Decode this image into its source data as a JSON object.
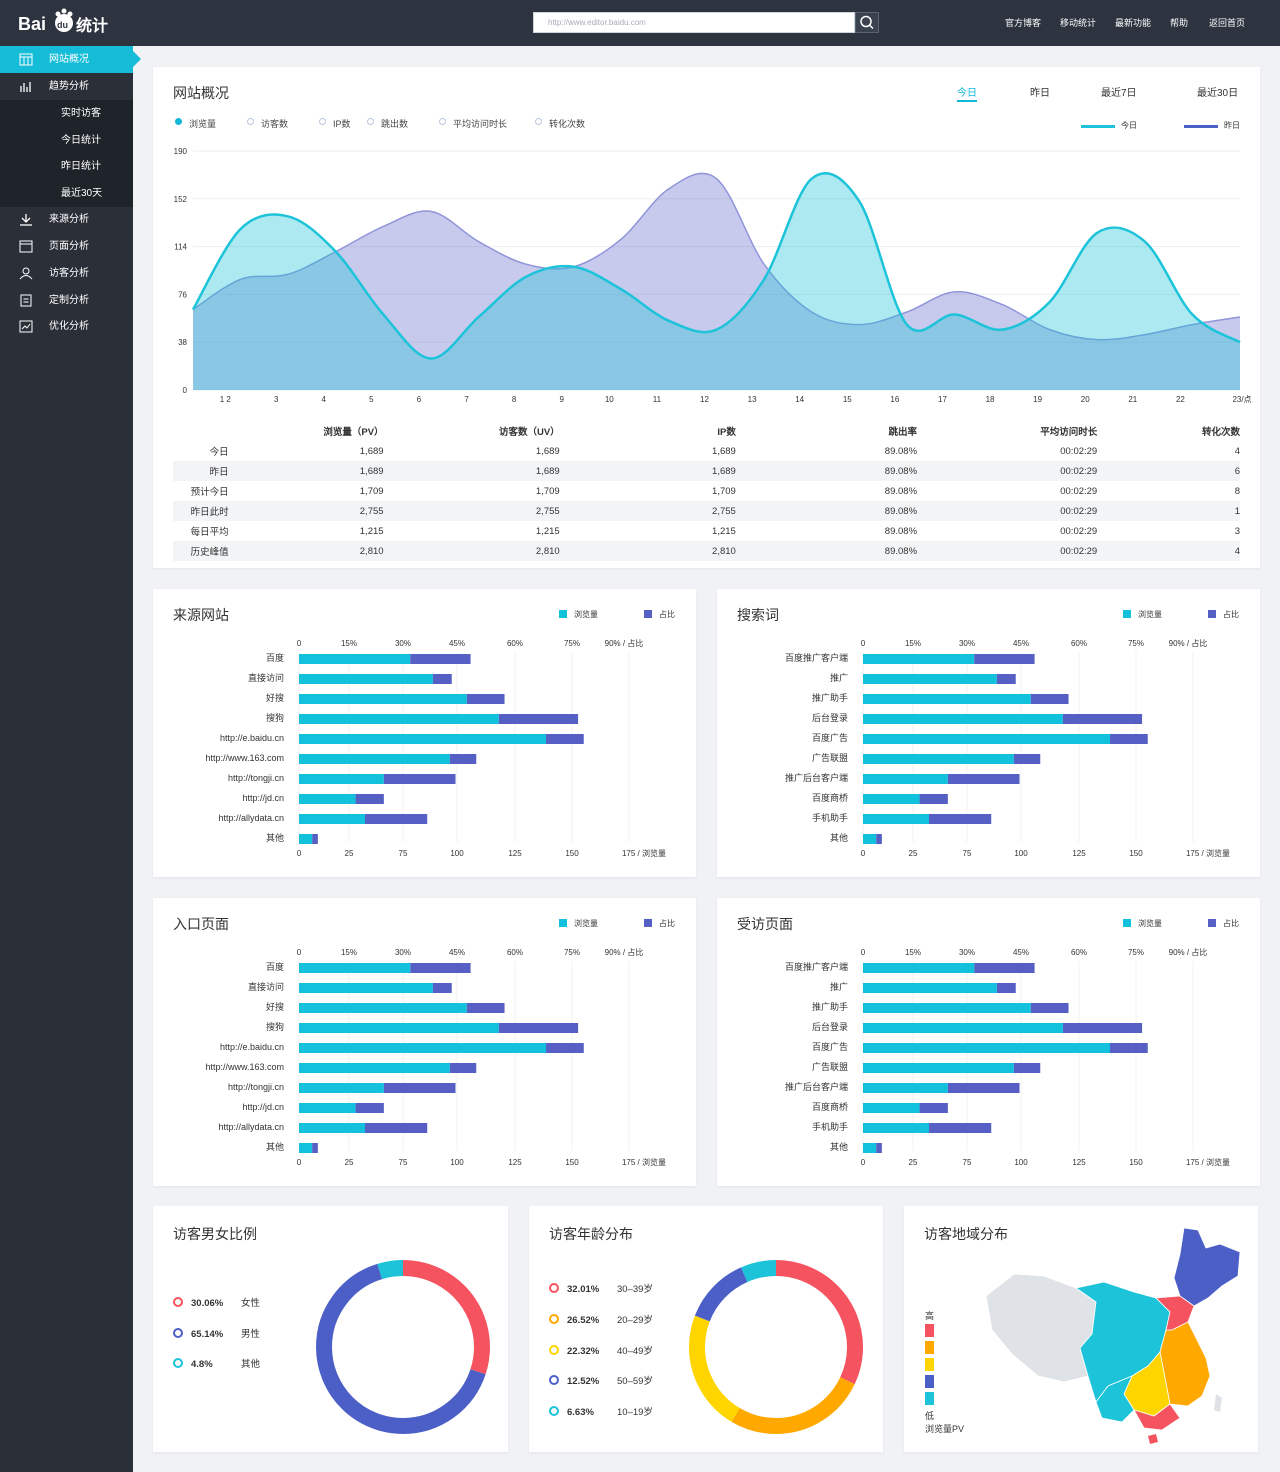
{
  "header": {
    "logo_text": "Bai du 统计",
    "search_placeholder": "http://www.editor.baidu.com",
    "nav": [
      "官方博客",
      "移动统计",
      "最新功能",
      "帮助",
      "返回首页"
    ]
  },
  "sidebar": {
    "items": [
      {
        "label": "网站概况",
        "icon": "grid-icon"
      },
      {
        "label": "趋势分析",
        "icon": "bar-chart-icon"
      },
      {
        "label": "来源分析",
        "icon": "download-icon"
      },
      {
        "label": "页面分析",
        "icon": "window-icon"
      },
      {
        "label": "访客分析",
        "icon": "users-icon"
      },
      {
        "label": "定制分析",
        "icon": "clipboard-icon"
      },
      {
        "label": "优化分析",
        "icon": "line-chart-icon"
      }
    ],
    "subitems": [
      "实时访客",
      "今日统计",
      "昨日统计",
      "最近30天"
    ]
  },
  "overview": {
    "title": "网站概况",
    "tabs": [
      "今日",
      "昨日",
      "最近7日",
      "最近30日"
    ],
    "metrics": [
      "浏览量",
      "访客数",
      "IP数",
      "跳出数",
      "平均访问时长",
      "转化次数"
    ],
    "legend": {
      "today": "今日",
      "yesterday": "昨日"
    },
    "colors": {
      "today": "#1cc3d9",
      "yesterday": "#4c5fc7"
    }
  },
  "chart_data": [
    {
      "type": "area",
      "x": [
        "1",
        "2",
        "3",
        "4",
        "5",
        "6",
        "7",
        "8",
        "9",
        "10",
        "11",
        "12",
        "13",
        "14",
        "15",
        "16",
        "17",
        "18",
        "19",
        "20",
        "21",
        "22",
        "23/点"
      ],
      "yticks": [
        0,
        38,
        76,
        114,
        152,
        190
      ],
      "ylim": [
        0,
        190
      ],
      "series": [
        {
          "name": "今日",
          "values": [
            64,
            128,
            138,
            110,
            60,
            25,
            58,
            90,
            98,
            80,
            55,
            48,
            88,
            168,
            150,
            52,
            60,
            48,
            70,
            125,
            118,
            60,
            38
          ]
        },
        {
          "name": "昨日",
          "values": [
            64,
            88,
            92,
            110,
            130,
            142,
            118,
            100,
            98,
            120,
            160,
            168,
            100,
            62,
            52,
            62,
            78,
            68,
            48,
            40,
            44,
            52,
            58
          ]
        }
      ]
    },
    {
      "type": "bar",
      "title": "来源网站",
      "categories": [
        "百度",
        "直接访问",
        "好搜",
        "搜狗",
        "http://e.baidu.cn",
        "http://www.163.com",
        "http://tongji.cn",
        "http://jd.cn",
        "http://allydata.cn",
        "其他"
      ],
      "series": [
        {
          "name": "浏览量",
          "values": [
            59,
            71,
            89,
            106,
            131,
            80,
            45,
            30,
            35,
            7
          ]
        },
        {
          "name": "占比",
          "values": [
            32,
            10,
            20,
            42,
            20,
            14,
            38,
            15,
            33,
            3
          ]
        }
      ],
      "top_ticks": [
        "0",
        "15%",
        "30%",
        "45%",
        "60%",
        "75%",
        "90% / 占比"
      ],
      "bottom_ticks": [
        "0",
        "25",
        "75",
        "100",
        "125",
        "150",
        "175 / 浏览量"
      ]
    },
    {
      "type": "bar",
      "title": "搜索词",
      "categories": [
        "百度推广客户端",
        "推广",
        "推广助手",
        "后台登录",
        "百度广告",
        "广告联盟",
        "推广后台客户端",
        "百度商桥",
        "手机助手",
        "其他"
      ],
      "series": [
        {
          "name": "浏览量",
          "values": [
            59,
            71,
            89,
            106,
            131,
            80,
            45,
            30,
            35,
            7
          ]
        },
        {
          "name": "占比",
          "values": [
            32,
            10,
            20,
            42,
            20,
            14,
            38,
            15,
            33,
            3
          ]
        }
      ],
      "top_ticks": [
        "0",
        "15%",
        "30%",
        "45%",
        "60%",
        "75%",
        "90% / 占比"
      ],
      "bottom_ticks": [
        "0",
        "25",
        "75",
        "100",
        "125",
        "150",
        "175 / 浏览量"
      ]
    },
    {
      "type": "bar",
      "title": "入口页面",
      "categories": [
        "百度",
        "直接访问",
        "好搜",
        "搜狗",
        "http://e.baidu.cn",
        "http://www.163.com",
        "http://tongji.cn",
        "http://jd.cn",
        "http://allydata.cn",
        "其他"
      ],
      "series": [
        {
          "name": "浏览量",
          "values": [
            59,
            71,
            89,
            106,
            131,
            80,
            45,
            30,
            35,
            7
          ]
        },
        {
          "name": "占比",
          "values": [
            32,
            10,
            20,
            42,
            20,
            14,
            38,
            15,
            33,
            3
          ]
        }
      ],
      "top_ticks": [
        "0",
        "15%",
        "30%",
        "45%",
        "60%",
        "75%",
        "90% / 占比"
      ],
      "bottom_ticks": [
        "0",
        "25",
        "75",
        "100",
        "125",
        "150",
        "175 / 浏览量"
      ]
    },
    {
      "type": "bar",
      "title": "受访页面",
      "categories": [
        "百度推广客户端",
        "推广",
        "推广助手",
        "后台登录",
        "百度广告",
        "广告联盟",
        "推广后台客户端",
        "百度商桥",
        "手机助手",
        "其他"
      ],
      "series": [
        {
          "name": "浏览量",
          "values": [
            59,
            71,
            89,
            106,
            131,
            80,
            45,
            30,
            35,
            7
          ]
        },
        {
          "name": "占比",
          "values": [
            32,
            10,
            20,
            42,
            20,
            14,
            38,
            15,
            33,
            3
          ]
        }
      ],
      "top_ticks": [
        "0",
        "15%",
        "30%",
        "45%",
        "60%",
        "75%",
        "90% / 占比"
      ],
      "bottom_ticks": [
        "0",
        "25",
        "75",
        "100",
        "125",
        "150",
        "175 / 浏览量"
      ]
    },
    {
      "type": "pie",
      "title": "访客男女比例",
      "slices": [
        {
          "value": "30.06%",
          "label": "女性",
          "pct": 30.06,
          "color": "#f5535f"
        },
        {
          "value": "65.14%",
          "label": "男性",
          "pct": 65.14,
          "color": "#4c5fc7"
        },
        {
          "value": "4.8%",
          "label": "其他",
          "pct": 4.8,
          "color": "#1cc3d9"
        }
      ]
    },
    {
      "type": "pie",
      "title": "访客年龄分布",
      "slices": [
        {
          "value": "32.01%",
          "label": "30–39岁",
          "pct": 32.01,
          "color": "#f5535f"
        },
        {
          "value": "26.52%",
          "label": "20–29岁",
          "pct": 26.52,
          "color": "#ffa800"
        },
        {
          "value": "22.32%",
          "label": "40–49岁",
          "pct": 22.32,
          "color": "#ffd500"
        },
        {
          "value": "12.52%",
          "label": "50–59岁",
          "pct": 12.52,
          "color": "#4c5fc7"
        },
        {
          "value": "6.63%",
          "label": "10–19岁",
          "pct": 6.63,
          "color": "#1cc3d9"
        }
      ]
    }
  ],
  "table": {
    "headers": [
      "",
      "浏览量（PV）",
      "访客数（UV）",
      "IP数",
      "跳出率",
      "平均访问时长",
      "转化次数"
    ],
    "rows": [
      [
        "今日",
        "1,689",
        "1,689",
        "1,689",
        "89.08%",
        "00:02:29",
        "4"
      ],
      [
        "昨日",
        "1,689",
        "1,689",
        "1,689",
        "89.08%",
        "00:02:29",
        "6"
      ],
      [
        "预计今日",
        "1,709",
        "1,709",
        "1,709",
        "89.08%",
        "00:02:29",
        "8"
      ],
      [
        "昨日此时",
        "2,755",
        "2,755",
        "2,755",
        "89.08%",
        "00:02:29",
        "1"
      ],
      [
        "每日平均",
        "1,215",
        "1,215",
        "1,215",
        "89.08%",
        "00:02:29",
        "3"
      ],
      [
        "历史峰值",
        "2,810",
        "2,810",
        "2,810",
        "89.08%",
        "00:02:29",
        "4"
      ]
    ]
  },
  "bar_legend": {
    "pv": "浏览量",
    "ratio": "占比",
    "pv_color": "#12c1db",
    "ratio_color": "#5660c4"
  },
  "region": {
    "title": "访客地域分布",
    "legend_high": "高",
    "legend_low": "低",
    "legend_unit": "浏览量PV",
    "scale_colors": [
      "#f5535f",
      "#ffa800",
      "#ffd500",
      "#4c5fc7",
      "#1cc3d9"
    ]
  }
}
